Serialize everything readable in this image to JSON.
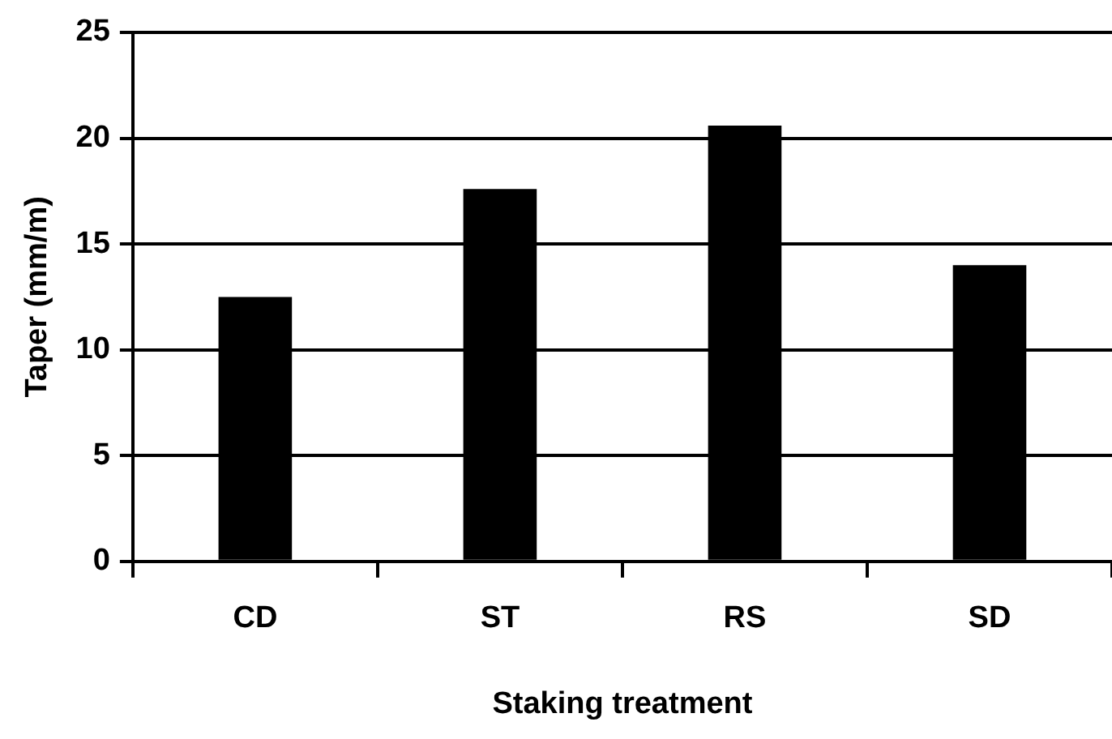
{
  "chart_data": {
    "type": "bar",
    "xlabel": "Staking treatment",
    "ylabel": "Taper (mm/m)",
    "categories": [
      "CD",
      "ST",
      "RS",
      "SD"
    ],
    "values": [
      12.5,
      17.6,
      20.6,
      14.0
    ],
    "color": "#000000",
    "ylim": [
      0,
      25
    ],
    "yticks": [
      0,
      5,
      10,
      15,
      20,
      25
    ],
    "grid": "y",
    "legend": false
  }
}
